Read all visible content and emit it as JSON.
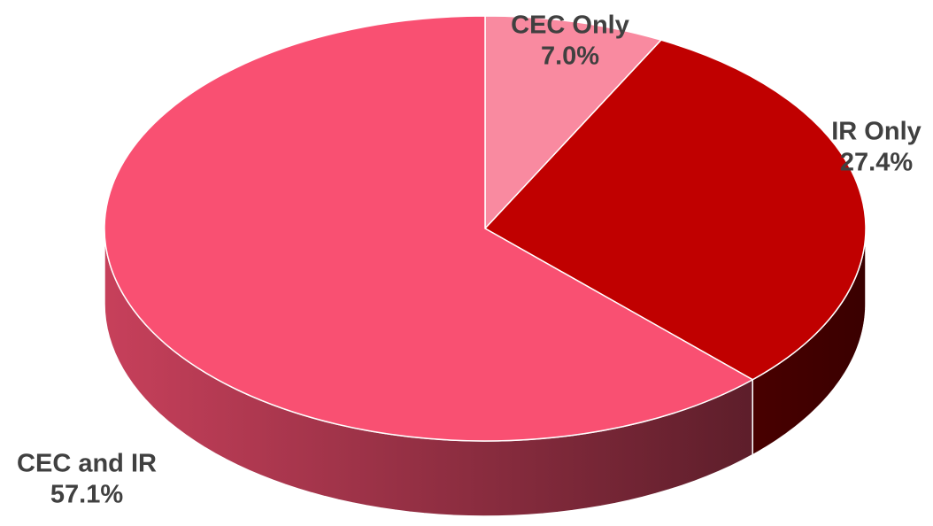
{
  "chart_data": {
    "type": "pie",
    "categories": [
      "CEC Only",
      "IR Only",
      "CEC and IR"
    ],
    "values": [
      7.0,
      27.4,
      57.1
    ],
    "value_labels": [
      "7.0%",
      "27.4%",
      "57.1%"
    ],
    "colors": [
      "#f98aa0",
      "#c00000",
      "#f95072"
    ]
  }
}
